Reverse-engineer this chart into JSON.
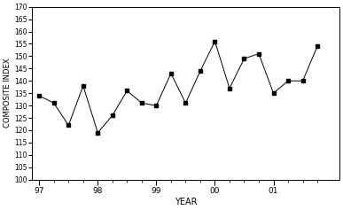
{
  "x_values": [
    0,
    1,
    2,
    3,
    4,
    5,
    6,
    7,
    8,
    9,
    10,
    11,
    12,
    13,
    14,
    15,
    16,
    17,
    18,
    19
  ],
  "y_values": [
    134,
    131,
    122,
    138,
    119,
    126,
    136,
    131,
    130,
    143,
    131,
    144,
    156,
    137,
    149,
    151,
    135,
    140,
    140,
    154
  ],
  "x_tick_positions": [
    0,
    4,
    8,
    12,
    16
  ],
  "x_tick_labels": [
    "97",
    "98",
    "99",
    "00",
    "01"
  ],
  "ylim": [
    100,
    170
  ],
  "xlim": [
    -0.5,
    20.5
  ],
  "ytick_step": 5,
  "xlabel": "YEAR",
  "ylabel": "COMPOSITE INDEX",
  "line_color": "#000000",
  "marker": "s",
  "marker_size": 3,
  "marker_color": "#000000",
  "background_color": "#ffffff",
  "figsize": [
    3.87,
    2.37
  ],
  "dpi": 100
}
